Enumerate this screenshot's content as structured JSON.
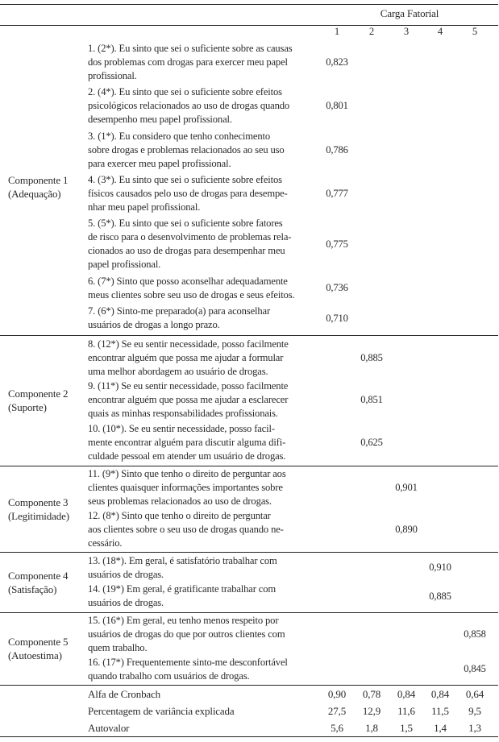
{
  "header": {
    "title": "Carga Fatorial",
    "columns": [
      "1",
      "2",
      "3",
      "4",
      "5"
    ]
  },
  "components": [
    {
      "name": "Componente 1",
      "label": "(Adequação)",
      "items": [
        {
          "lines": [
            "1. (2*). Eu sinto que sei o suficiente sobre as causas",
            "dos problemas com drogas para exercer meu papel",
            "profissional."
          ],
          "col": 1,
          "value": "0,823"
        },
        {
          "lines": [
            "2. (4*). Eu sinto que sei o suficiente sobre efeitos",
            "psicológicos relacionados ao uso de drogas quando",
            "desempenho meu papel profissional."
          ],
          "col": 1,
          "value": "0,801"
        },
        {
          "lines": [
            "3. (1*). Eu considero que tenho conhecimento",
            "sobre drogas e problemas relacionados ao seu uso",
            "para exercer meu papel profissional."
          ],
          "col": 1,
          "value": "0,786"
        },
        {
          "lines": [
            "4. (3*). Eu sinto que sei o suficiente sobre efeitos",
            "físicos causados pelo uso de drogas para desempe-",
            "nhar meu papel profissional."
          ],
          "col": 1,
          "value": "0,777"
        },
        {
          "lines": [
            "5. (5*). Eu sinto que sei o suficiente sobre fatores",
            "de risco para o desenvolvimento de problemas rela-",
            "cionados ao uso de drogas para desempenhar meu",
            "papel profissional."
          ],
          "col": 1,
          "value": "0,775"
        },
        {
          "lines": [
            "6. (7*) Sinto que posso aconselhar adequadamente",
            "meus clientes sobre seu uso de drogas e seus efeitos."
          ],
          "col": 1,
          "value": "0,736"
        },
        {
          "lines": [
            "7. (6*) Sinto-me preparado(a) para aconselhar",
            "usuários de drogas a longo prazo."
          ],
          "col": 1,
          "value": "0,710"
        }
      ]
    },
    {
      "name": "Componente 2",
      "label": "(Suporte)",
      "items": [
        {
          "lines": [
            "8. (12*) Se eu sentir necessidade,  posso facilmente",
            "encontrar alguém que possa me ajudar a formular",
            "uma melhor abordagem ao usuário de drogas."
          ],
          "col": 2,
          "value": "0,885"
        },
        {
          "lines": [
            "9. (11*) Se eu sentir necessidade,  posso facilmente",
            "encontrar alguém que possa me ajudar a esclarecer",
            "quais as minhas responsabilidades profissionais."
          ],
          "col": 2,
          "value": "0,851"
        },
        {
          "lines": [
            "10. (10*). Se eu sentir necessidade,  posso facil-",
            "mente encontrar alguém para discutir alguma difi-",
            "culdade pessoal em atender um usuário de drogas."
          ],
          "col": 2,
          "value": "0,625"
        }
      ]
    },
    {
      "name": "Componente 3",
      "label": "(Legitimidade)",
      "items": [
        {
          "lines": [
            "11. (9*) Sinto que tenho o direito de perguntar aos",
            "clientes quaisquer informações importantes sobre",
            "seus problemas relacionados ao uso de drogas."
          ],
          "col": 3,
          "value": "0,901"
        },
        {
          "lines": [
            "12. (8*) Sinto que tenho o direito de perguntar",
            "aos clientes sobre o seu uso de drogas quando ne-",
            "cessário."
          ],
          "col": 3,
          "value": "0,890"
        }
      ]
    },
    {
      "name": "Componente 4",
      "label": "(Satisfação)",
      "items": [
        {
          "lines": [
            "13. (18*). Em geral, é satisfatório trabalhar com",
            "usuários de drogas."
          ],
          "col": 4,
          "value": "0,910"
        },
        {
          "lines": [
            "14. (19*) Em geral, é gratificante trabalhar com",
            "usuários de drogas."
          ],
          "col": 4,
          "value": "0,885"
        }
      ]
    },
    {
      "name": "Componente 5",
      "label": "(Autoestima)",
      "items": [
        {
          "lines": [
            "15. (16*) Em geral, eu tenho menos respeito por",
            "usuários de drogas do que por outros clientes com",
            "quem trabalho."
          ],
          "col": 5,
          "value": "0,858"
        },
        {
          "lines": [
            "16. (17*) Frequentemente sinto-me desconfortável",
            "quando trabalho com usuários de drogas."
          ],
          "col": 5,
          "value": "0,845"
        }
      ]
    }
  ],
  "stats": [
    {
      "label": "Alfa de Cronbach",
      "values": [
        "0,90",
        "0,78",
        "0,84",
        "0,84",
        "0,64"
      ]
    },
    {
      "label": "Percentagem de variância explicada",
      "values": [
        "27,5",
        "12,9",
        "11,6",
        "11,5",
        "9,5"
      ]
    },
    {
      "label": "Autovalor",
      "values": [
        "5,6",
        "1,8",
        "1,5",
        "1,4",
        "1,3"
      ]
    }
  ]
}
